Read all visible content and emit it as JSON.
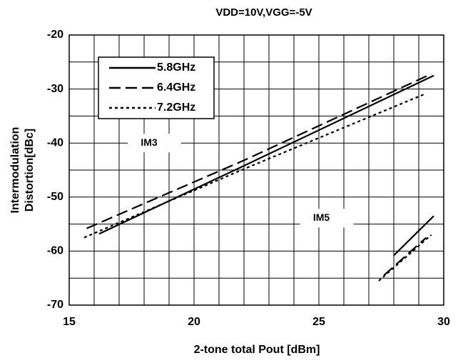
{
  "chart_data": {
    "type": "line",
    "title": "VDD=10V,VGG=-5V",
    "xlabel": "2-tone total Pout [dBm]",
    "ylabel": [
      "Intermodulation",
      "Distortion[dBc]"
    ],
    "xlim": [
      15,
      30
    ],
    "ylim": [
      -70,
      -20
    ],
    "xticks": [
      15,
      20,
      25,
      30
    ],
    "yticks": [
      -20,
      -30,
      -40,
      -50,
      -60,
      -70
    ],
    "x_minor_ticks": [
      16,
      17,
      18,
      19,
      21,
      22,
      23,
      24,
      26,
      27,
      28,
      29
    ],
    "y_minor_ticks": [
      -25,
      -35,
      -45,
      -55,
      -65
    ],
    "grid": true,
    "legend": "upper left",
    "series": [
      {
        "name": "5.8GHz",
        "color": "#000000",
        "line_style": "solid",
        "x": [
          16.2,
          22,
          29.6,
          null,
          28,
          29.6
        ],
        "values": [
          -56.8,
          -44.2,
          -27.5,
          null,
          -60.8,
          -53.5
        ]
      },
      {
        "name": "6.4GHz",
        "color": "#000000",
        "line_style": "dashed",
        "x": [
          15.7,
          22,
          29.5,
          null,
          27.6,
          29.3
        ],
        "values": [
          -55.8,
          -43.2,
          -27.2,
          null,
          -64.5,
          -57.5
        ]
      },
      {
        "name": "7.2GHz",
        "color": "#000000",
        "line_style": "dotted",
        "x": [
          15.6,
          22,
          29.2,
          null,
          27.4,
          29.5
        ],
        "values": [
          -57.5,
          -44.8,
          -31,
          null,
          -65.5,
          -57
        ]
      }
    ],
    "annotations": [
      {
        "text": "IM3",
        "x": 18.2,
        "y": -40
      },
      {
        "text": "IM5",
        "x": 25.1,
        "y": -53.9
      }
    ]
  }
}
